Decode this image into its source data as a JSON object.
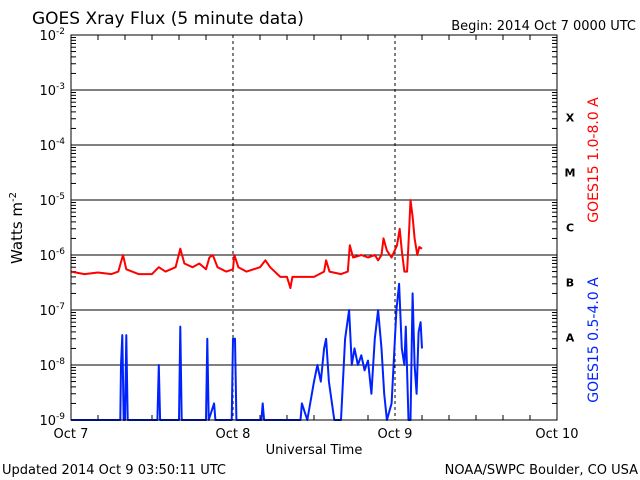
{
  "chart_data": {
    "type": "line",
    "title": "GOES Xray Flux (5 minute data)",
    "begin_label": "Begin:  2014 Oct 7 0000 UTC",
    "xlabel": "Universal Time",
    "ylabel": "Watts m",
    "ylabel_sup": "-2",
    "x_unit": "hours since 2014 Oct 7 0000 UTC",
    "xlim": [
      0,
      72
    ],
    "ylim": [
      1e-09,
      0.01
    ],
    "yscale": "log",
    "grid": true,
    "x_ticks": [
      {
        "label": "Oct 7",
        "hour": 0
      },
      {
        "label": "Oct 8",
        "hour": 24
      },
      {
        "label": "Oct 9",
        "hour": 48
      },
      {
        "label": "Oct 10",
        "hour": 72
      }
    ],
    "y_ticks": [
      {
        "exp": "-9",
        "value": 1e-09
      },
      {
        "exp": "-8",
        "value": 1e-08
      },
      {
        "exp": "-7",
        "value": 1e-07
      },
      {
        "exp": "-6",
        "value": 1e-06
      },
      {
        "exp": "-5",
        "value": 1e-05
      },
      {
        "exp": "-4",
        "value": 0.0001
      },
      {
        "exp": "-3",
        "value": 0.001
      },
      {
        "exp": "-2",
        "value": 0.01
      }
    ],
    "flare_classes": [
      {
        "label": "A",
        "value": 3.16e-08
      },
      {
        "label": "B",
        "value": 3.16e-07
      },
      {
        "label": "C",
        "value": 3.16e-06
      },
      {
        "label": "M",
        "value": 3.16e-05
      },
      {
        "label": "X",
        "value": 0.000316
      }
    ],
    "series": [
      {
        "name": "GOES15 1.0-8.0 A",
        "color": "#ff0000",
        "points": [
          [
            0,
            5e-07
          ],
          [
            2,
            4.5e-07
          ],
          [
            4,
            4.8e-07
          ],
          [
            6,
            4.5e-07
          ],
          [
            7,
            5e-07
          ],
          [
            7.7,
            1e-06
          ],
          [
            8.2,
            5.5e-07
          ],
          [
            10,
            4.5e-07
          ],
          [
            12,
            4.5e-07
          ],
          [
            13,
            6e-07
          ],
          [
            14,
            5e-07
          ],
          [
            15.5,
            6e-07
          ],
          [
            16.2,
            1.3e-06
          ],
          [
            16.8,
            7e-07
          ],
          [
            18,
            6e-07
          ],
          [
            19,
            7e-07
          ],
          [
            20,
            5.5e-07
          ],
          [
            20.5,
            9e-07
          ],
          [
            21,
            1e-06
          ],
          [
            21.7,
            6e-07
          ],
          [
            23,
            5e-07
          ],
          [
            24,
            5.5e-07
          ],
          [
            24.2,
            1e-06
          ],
          [
            24.8,
            6e-07
          ],
          [
            26,
            5e-07
          ],
          [
            28,
            6e-07
          ],
          [
            28.8,
            8e-07
          ],
          [
            29.5,
            6e-07
          ],
          [
            31,
            4e-07
          ],
          [
            32,
            4e-07
          ],
          [
            32.5,
            2.5e-07
          ],
          [
            32.8,
            4e-07
          ],
          [
            34,
            4e-07
          ],
          [
            36,
            4e-07
          ],
          [
            37.5,
            5e-07
          ],
          [
            37.8,
            8e-07
          ],
          [
            38.3,
            5e-07
          ],
          [
            40,
            4.5e-07
          ],
          [
            41,
            5e-07
          ],
          [
            41.3,
            1.5e-06
          ],
          [
            41.8,
            9e-07
          ],
          [
            43,
            1e-06
          ],
          [
            44,
            9e-07
          ],
          [
            45,
            1e-06
          ],
          [
            45.5,
            8e-07
          ],
          [
            46,
            1e-06
          ],
          [
            46.3,
            2e-06
          ],
          [
            46.8,
            1.2e-06
          ],
          [
            47.5,
            9e-07
          ],
          [
            48.3,
            1.5e-06
          ],
          [
            48.7,
            3e-06
          ],
          [
            49,
            1.2e-06
          ],
          [
            49.4,
            5e-07
          ],
          [
            49.8,
            5e-07
          ],
          [
            50.1,
            3e-06
          ],
          [
            50.3,
            1e-05
          ],
          [
            50.6,
            5e-06
          ],
          [
            50.9,
            2e-06
          ],
          [
            51.3,
            1e-06
          ],
          [
            51.6,
            1.4e-06
          ],
          [
            52,
            1.3e-06
          ]
        ]
      },
      {
        "name": "GOES15 0.5-4.0 A",
        "color": "#0022ff",
        "points": [
          [
            0,
            1e-09
          ],
          [
            7.3,
            1e-09
          ],
          [
            7.4,
            1e-08
          ],
          [
            7.6,
            3.5e-08
          ],
          [
            7.8,
            1e-09
          ],
          [
            8.0,
            1e-09
          ],
          [
            8.2,
            3.5e-08
          ],
          [
            8.4,
            1e-09
          ],
          [
            12.8,
            1e-09
          ],
          [
            13,
            1e-08
          ],
          [
            13.2,
            1e-09
          ],
          [
            16,
            1e-09
          ],
          [
            16.2,
            5e-08
          ],
          [
            16.4,
            1e-09
          ],
          [
            20,
            1e-09
          ],
          [
            20.2,
            3e-08
          ],
          [
            20.4,
            1e-09
          ],
          [
            21.2,
            2e-09
          ],
          [
            21.4,
            1e-09
          ],
          [
            23.8,
            1e-09
          ],
          [
            24,
            3e-08
          ],
          [
            24.3,
            3e-08
          ],
          [
            24.5,
            1e-09
          ],
          [
            28.2,
            1e-09
          ],
          [
            28.4,
            2e-09
          ],
          [
            28.6,
            1e-09
          ],
          [
            34,
            1e-09
          ],
          [
            34.2,
            2e-09
          ],
          [
            35,
            1e-09
          ],
          [
            36,
            5e-09
          ],
          [
            36.5,
            1e-08
          ],
          [
            37,
            5e-09
          ],
          [
            37.5,
            2e-08
          ],
          [
            37.8,
            3e-08
          ],
          [
            38.2,
            5e-09
          ],
          [
            39,
            1e-09
          ],
          [
            40,
            1e-09
          ],
          [
            40.6,
            3e-08
          ],
          [
            41.2,
            1e-07
          ],
          [
            41.6,
            1e-08
          ],
          [
            42,
            2e-08
          ],
          [
            42.5,
            1e-08
          ],
          [
            43,
            1.5e-08
          ],
          [
            43.5,
            8e-09
          ],
          [
            44,
            1.2e-08
          ],
          [
            44.5,
            3e-09
          ],
          [
            45,
            3e-08
          ],
          [
            45.5,
            1e-07
          ],
          [
            46,
            2e-08
          ],
          [
            46.4,
            3e-09
          ],
          [
            46.8,
            1e-09
          ],
          [
            47.5,
            2e-09
          ],
          [
            48.2,
            1e-07
          ],
          [
            48.6,
            3e-07
          ],
          [
            49,
            2e-08
          ],
          [
            49.4,
            1e-08
          ],
          [
            49.6,
            5e-08
          ],
          [
            50,
            1e-09
          ],
          [
            50.3,
            1e-09
          ],
          [
            50.6,
            2e-07
          ],
          [
            50.9,
            1e-08
          ],
          [
            51.2,
            3e-09
          ],
          [
            51.5,
            4e-08
          ],
          [
            51.8,
            6e-08
          ],
          [
            52,
            2e-08
          ]
        ]
      }
    ],
    "footer_left": "Updated 2014 Oct  9 03:50:11 UTC",
    "footer_right": "NOAA/SWPC Boulder, CO USA"
  }
}
